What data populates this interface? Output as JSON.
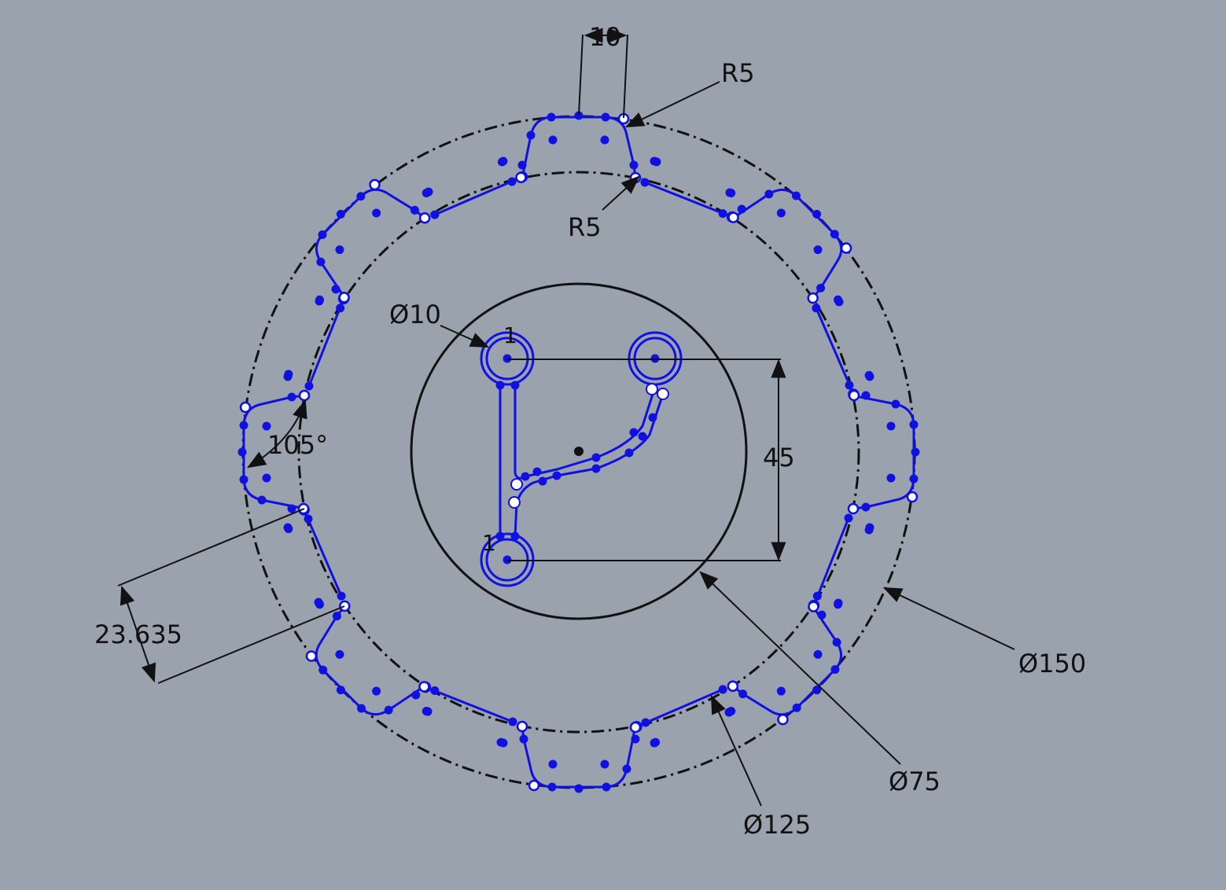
{
  "colors": {
    "background": "#9aa3ad",
    "sketch_line": "#1010e0",
    "construction": "#111111",
    "dimension": "#111111",
    "open_point": "#ffffff"
  },
  "dimensions": {
    "tab_width": "10",
    "outer_fillet": "R5",
    "inner_fillet": "R5",
    "angle": "105°",
    "chord": "23.635",
    "hole_diameter": "Ø10",
    "vertical_spacing": "45",
    "outer_circle": "Ø150",
    "hub_circle": "Ø75",
    "inner_circle": "Ø125"
  },
  "constraints": {
    "equal_top": "1",
    "equal_bottom": "1"
  }
}
